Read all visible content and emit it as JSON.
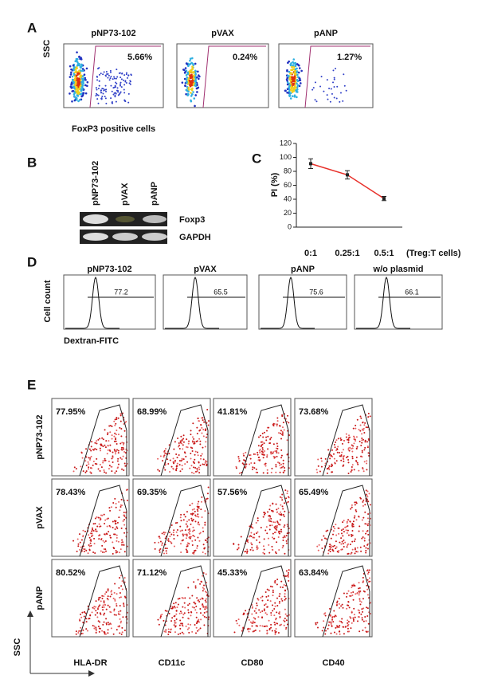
{
  "panel_a": {
    "label": "A",
    "titles": [
      "pNP73-102",
      "pVAX",
      "pANP"
    ],
    "percentages": [
      "5.66%",
      "0.24%",
      "1.27%"
    ],
    "y_label": "SSC",
    "x_label": "FoxP3 positive cells"
  },
  "panel_b": {
    "label": "B",
    "lanes": [
      "pNP73-102",
      "pVAX",
      "pANP"
    ],
    "bands": [
      "Foxp3",
      "GAPDH"
    ]
  },
  "panel_c": {
    "label": "C",
    "type": "line",
    "y_label": "PI (%)",
    "categories": [
      "0:1",
      "0.25:1",
      "0.5:1"
    ],
    "x_note": "(Treg:T cells)",
    "values": [
      91,
      75,
      41
    ],
    "errors": [
      7,
      6,
      3
    ],
    "ylim": [
      0,
      120
    ],
    "yticks": [
      0,
      20,
      40,
      60,
      80,
      100,
      120
    ],
    "color": "#e8302a"
  },
  "panel_d": {
    "label": "D",
    "titles": [
      "pNP73-102",
      "pVAX",
      "pANP",
      "w/o plasmid"
    ],
    "gates": [
      "77.2",
      "65.5",
      "75.6",
      "66.1"
    ],
    "y_label": "Cell count",
    "x_label": "Dextran-FITC"
  },
  "panel_e": {
    "label": "E",
    "rows": [
      "pNP73-102",
      "pVAX",
      "pANP"
    ],
    "columns": [
      "HLA-DR",
      "CD11c",
      "CD80",
      "CD40"
    ],
    "percentages": [
      [
        "77.95%",
        "68.99%",
        "41.81%",
        "73.68%"
      ],
      [
        "78.43%",
        "69.35%",
        "57.56%",
        "65.49%"
      ],
      [
        "80.52%",
        "71.12%",
        "45.33%",
        "63.84%"
      ]
    ],
    "y_label": "SSC"
  }
}
